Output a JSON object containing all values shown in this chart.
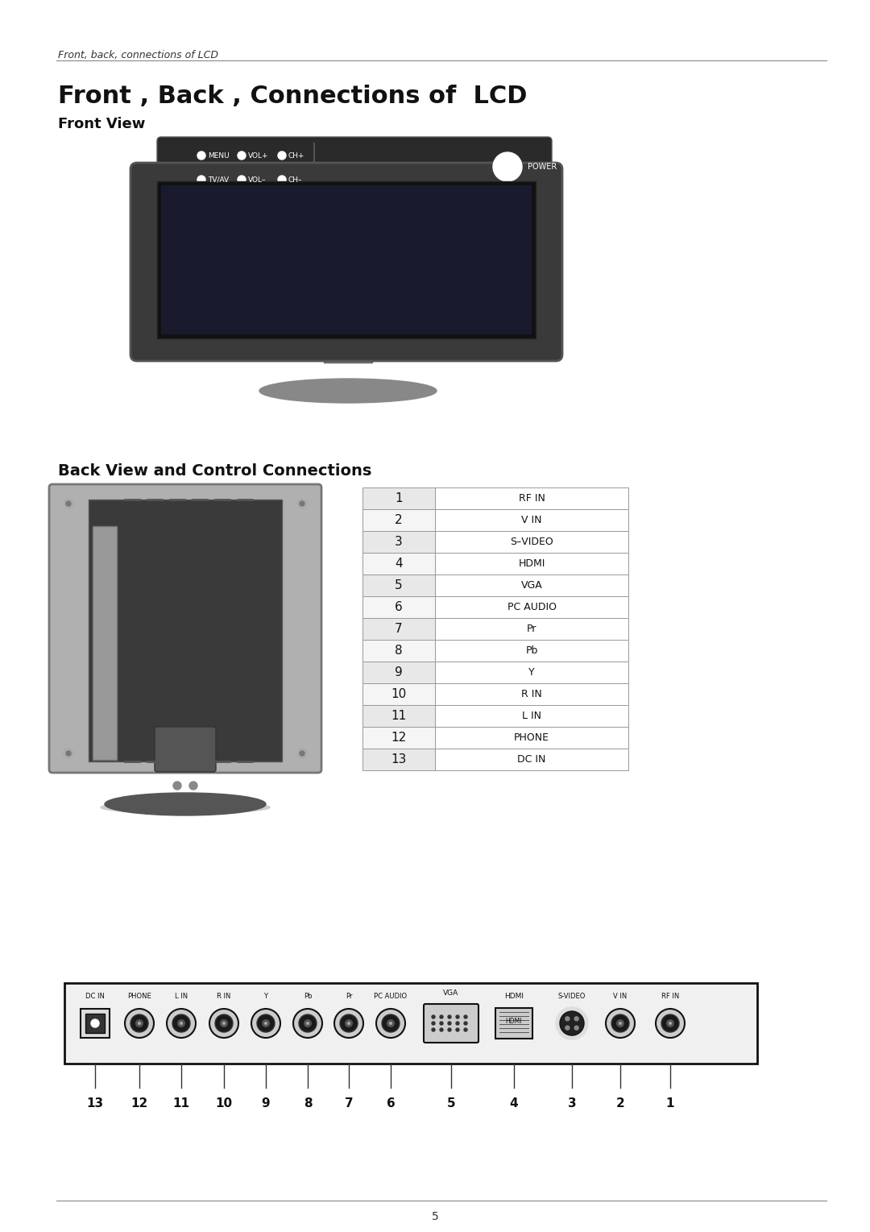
{
  "page_title": "Front , Back , Connections of  LCD",
  "page_subtitle": "Front View",
  "section2_title": "Back View and Control Connections",
  "header_italic": "Front, back, connections of LCD",
  "page_number": "5",
  "bg_color": "#ffffff",
  "table_data": [
    [
      "1",
      "RF IN"
    ],
    [
      "2",
      "V IN"
    ],
    [
      "3",
      "S–VIDEO"
    ],
    [
      "4",
      "HDMI"
    ],
    [
      "5",
      "VGA"
    ],
    [
      "6",
      "PC AUDIO"
    ],
    [
      "7",
      "Pr"
    ],
    [
      "8",
      "Pb"
    ],
    [
      "9",
      "Y"
    ],
    [
      "10",
      "R IN"
    ],
    [
      "11",
      "L IN"
    ],
    [
      "12",
      "PHONE"
    ],
    [
      "13",
      "DC IN"
    ]
  ],
  "connector_labels_top": [
    "DC IN",
    "PHONE",
    "L IN",
    "R IN",
    "Y",
    "Pb",
    "Pr",
    "PC AUDIO",
    "VGA",
    "",
    "HDMI",
    "S-VIDEO",
    "V IN",
    "RF IN"
  ],
  "connector_numbers": [
    "13",
    "12",
    "11",
    "10",
    "9",
    "8",
    "7",
    "6",
    "5",
    "4",
    "3",
    "2",
    "1"
  ],
  "front_panel_buttons_row1": [
    "MENU",
    "VOL+",
    "CH+"
  ],
  "front_panel_buttons_row2": [
    "TV/AV",
    "VOL–",
    "CH–"
  ],
  "power_label": "POWER"
}
